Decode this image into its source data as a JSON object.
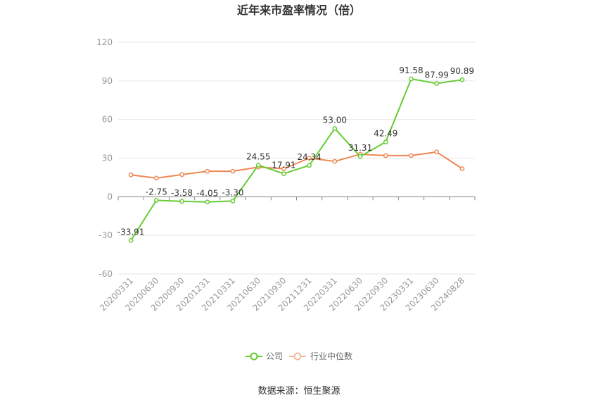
{
  "chart_data": {
    "type": "line",
    "title": "近年来市盈率情况（倍）",
    "categories": [
      "20200331",
      "20200630",
      "20200930",
      "20201231",
      "20210331",
      "20210630",
      "20210930",
      "20211231",
      "20220331",
      "20220630",
      "20220930",
      "20230331",
      "20230630",
      "20240828"
    ],
    "series": [
      {
        "name": "公司",
        "color": "#66cc33",
        "values": [
          -33.91,
          -2.75,
          -3.58,
          -4.05,
          -3.3,
          24.55,
          17.91,
          24.34,
          53.0,
          31.31,
          42.49,
          91.58,
          87.99,
          90.89
        ],
        "labels": [
          "-33.91",
          "-2.75",
          "-3.58",
          "-4.05",
          "-3.30",
          "24.55",
          "17.91",
          "24.34",
          "53.00",
          "31.31",
          "42.49",
          "91.58",
          "87.99",
          "90.89"
        ]
      },
      {
        "name": "行业中位数",
        "color": "#ee8855",
        "values": [
          17.0,
          14.5,
          17.2,
          19.8,
          19.8,
          23.0,
          21.8,
          30.0,
          27.5,
          33.0,
          32.0,
          32.0,
          34.8,
          21.8
        ]
      }
    ],
    "ylim": [
      -60,
      120
    ],
    "yticks": [
      -60,
      -30,
      0,
      30,
      60,
      90,
      120
    ],
    "grid": true,
    "legend_position": "bottom-center",
    "source": "数据来源：恒生聚源"
  }
}
